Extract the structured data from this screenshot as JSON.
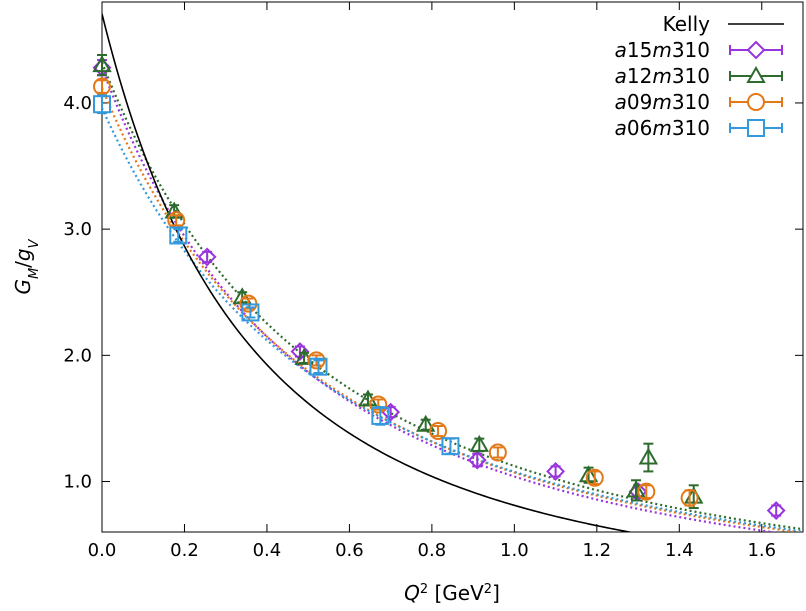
{
  "chart_data": {
    "type": "scatter",
    "xlabel_main": "Q",
    "xlabel_sup": "2",
    "xlabel_unit_open": " [GeV",
    "xlabel_unit_sup": "2",
    "xlabel_unit_close": "]",
    "ylabel_num": "G",
    "ylabel_num_sub": "M",
    "ylabel_slash": "/",
    "ylabel_den": "g",
    "ylabel_den_sub": "V",
    "xlim": [
      0.0,
      1.7
    ],
    "ylim": [
      0.6,
      4.8
    ],
    "xticks": [
      {
        "v": 0.0,
        "label": "0.0"
      },
      {
        "v": 0.2,
        "label": "0.2"
      },
      {
        "v": 0.4,
        "label": "0.4"
      },
      {
        "v": 0.6,
        "label": "0.6"
      },
      {
        "v": 0.8,
        "label": "0.8"
      },
      {
        "v": 1.0,
        "label": "1.0"
      },
      {
        "v": 1.2,
        "label": "1.2"
      },
      {
        "v": 1.4,
        "label": "1.4"
      },
      {
        "v": 1.6,
        "label": "1.6"
      }
    ],
    "yticks": [
      {
        "v": 1.0,
        "label": "1.0"
      },
      {
        "v": 2.0,
        "label": "2.0"
      },
      {
        "v": 3.0,
        "label": "3.0"
      },
      {
        "v": 4.0,
        "label": "4.0"
      }
    ],
    "legend_position": "top-right",
    "kelly": {
      "name": "Kelly",
      "color": "#000000",
      "amplitude": 4.706,
      "mass_sq": 0.71
    },
    "series": [
      {
        "name_pre": "a15",
        "name_mid": "m",
        "name_post": "310",
        "marker": "diamond",
        "color": "#9933dd",
        "fit": {
          "g0": 4.28,
          "m2": 0.972
        },
        "points": [
          {
            "x": 0.0,
            "y": 4.28,
            "err": 0.06
          },
          {
            "x": 0.255,
            "y": 2.78,
            "err": 0.04
          },
          {
            "x": 0.48,
            "y": 2.03,
            "err": 0.04
          },
          {
            "x": 0.7,
            "y": 1.55,
            "err": 0.04
          },
          {
            "x": 0.91,
            "y": 1.17,
            "err": 0.05
          },
          {
            "x": 1.1,
            "y": 1.08,
            "err": 0.04
          },
          {
            "x": 1.3,
            "y": 0.92,
            "err": 0.05
          },
          {
            "x": 1.635,
            "y": 0.77,
            "err": 0.04
          }
        ]
      },
      {
        "name_pre": "a12",
        "name_mid": "m",
        "name_post": "310",
        "marker": "triangle",
        "color": "#2e6b2e",
        "fit": {
          "g0": 4.32,
          "m2": 1.04
        },
        "points": [
          {
            "x": 0.0,
            "y": 4.3,
            "err": 0.08
          },
          {
            "x": 0.175,
            "y": 3.14,
            "err": 0.05
          },
          {
            "x": 0.34,
            "y": 2.46,
            "err": 0.04
          },
          {
            "x": 0.49,
            "y": 1.98,
            "err": 0.04
          },
          {
            "x": 0.645,
            "y": 1.65,
            "err": 0.04
          },
          {
            "x": 0.785,
            "y": 1.45,
            "err": 0.04
          },
          {
            "x": 0.915,
            "y": 1.29,
            "err": 0.05
          },
          {
            "x": 1.18,
            "y": 1.05,
            "err": 0.06
          },
          {
            "x": 1.295,
            "y": 0.93,
            "err": 0.08
          },
          {
            "x": 1.325,
            "y": 1.19,
            "err": 0.11
          },
          {
            "x": 1.435,
            "y": 0.88,
            "err": 0.09
          }
        ]
      },
      {
        "name_pre": "a09",
        "name_mid": "m",
        "name_post": "310",
        "marker": "circle",
        "color": "#e37818",
        "fit": {
          "g0": 4.12,
          "m2": 1.04
        },
        "points": [
          {
            "x": 0.0,
            "y": 4.13,
            "err": 0.05
          },
          {
            "x": 0.18,
            "y": 3.07,
            "err": 0.04
          },
          {
            "x": 0.355,
            "y": 2.41,
            "err": 0.04
          },
          {
            "x": 0.52,
            "y": 1.96,
            "err": 0.04
          },
          {
            "x": 0.67,
            "y": 1.61,
            "err": 0.04
          },
          {
            "x": 0.815,
            "y": 1.4,
            "err": 0.04
          },
          {
            "x": 0.96,
            "y": 1.23,
            "err": 0.04
          },
          {
            "x": 1.195,
            "y": 1.03,
            "err": 0.05
          },
          {
            "x": 1.32,
            "y": 0.92,
            "err": 0.05
          },
          {
            "x": 1.425,
            "y": 0.87,
            "err": 0.06
          }
        ]
      },
      {
        "name_pre": "a06",
        "name_mid": "m",
        "name_post": "310",
        "marker": "square",
        "color": "#3399dd",
        "fit": {
          "g0": 3.96,
          "m2": 1.09
        },
        "points": [
          {
            "x": 0.0,
            "y": 3.99,
            "err": 0.07
          },
          {
            "x": 0.185,
            "y": 2.95,
            "err": 0.05
          },
          {
            "x": 0.36,
            "y": 2.34,
            "err": 0.04
          },
          {
            "x": 0.525,
            "y": 1.91,
            "err": 0.05
          },
          {
            "x": 0.675,
            "y": 1.52,
            "err": 0.07
          },
          {
            "x": 0.845,
            "y": 1.28,
            "err": 0.06
          }
        ]
      }
    ]
  }
}
